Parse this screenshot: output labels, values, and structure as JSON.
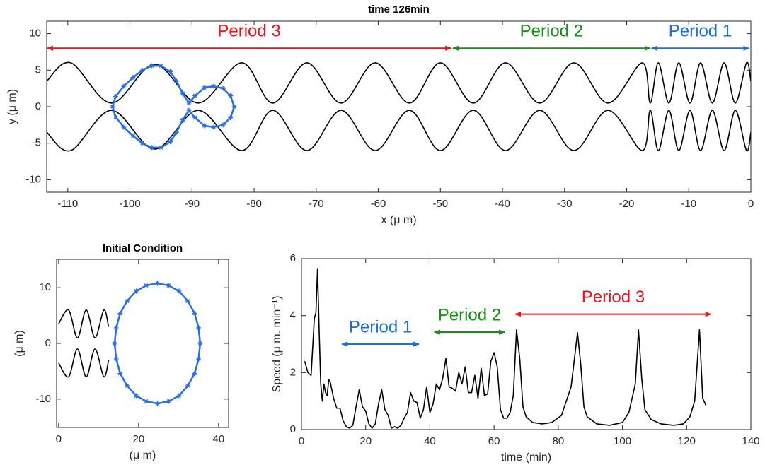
{
  "chart_data": [
    {
      "type": "line",
      "title": "time 126min",
      "xlabel": "x (μ m)",
      "ylabel": "y (μ m)",
      "xlim": [
        -113.4,
        0
      ],
      "ylim": [
        -11.7,
        11.7
      ],
      "xticks": [
        -110,
        -100,
        -90,
        -80,
        -70,
        -60,
        -50,
        -40,
        -30,
        -20,
        -10,
        0
      ],
      "yticks": [
        -10,
        -5,
        0,
        5,
        10
      ],
      "series": [
        {
          "color": "#000000",
          "smooth": true,
          "x": [
            -113.4,
            -109.5,
            -103,
            -96,
            -89,
            -82,
            -77,
            -71.5,
            -66,
            -60.5,
            -55,
            -50,
            -44.7,
            -39.5,
            -34,
            -28.5,
            -23,
            -17.5,
            -16.2,
            -14.9,
            -13.2,
            -11.6,
            -9.8,
            -8.1,
            -6.2,
            -4.3,
            -2.5,
            -0.7,
            0
          ],
          "values": [
            3.5,
            6,
            0.5,
            5.8,
            0.5,
            6,
            0.5,
            6,
            0.5,
            6,
            0.5,
            6,
            0.5,
            6,
            0.5,
            6,
            0.5,
            6,
            0.5,
            6,
            0.5,
            6,
            0.5,
            6,
            0.5,
            6,
            0.5,
            6,
            3.5
          ]
        },
        {
          "color": "#000000",
          "smooth": true,
          "x": [
            -113.4,
            -109.5,
            -103,
            -96,
            -89,
            -82,
            -77,
            -71.5,
            -66,
            -60.5,
            -55,
            -50,
            -44.7,
            -39.5,
            -34,
            -28.5,
            -23,
            -17.5,
            -16.2,
            -14.9,
            -13.2,
            -11.6,
            -9.8,
            -8.1,
            -6.2,
            -4.3,
            -2.5,
            -0.7,
            0
          ],
          "values": [
            -3.5,
            -6,
            -0.5,
            -5.8,
            -0.5,
            -6,
            -0.5,
            -6,
            -0.5,
            -6,
            -0.5,
            -6,
            -0.5,
            -6,
            -0.5,
            -6,
            -0.5,
            -6,
            -0.5,
            -6,
            -0.5,
            -6,
            -0.5,
            -6,
            -0.5,
            -6,
            -0.5,
            -6,
            -3.5
          ]
        },
        {
          "color": "#2a6fdb",
          "marker": "star",
          "closed": true,
          "x": [
            -90.5,
            -91.5,
            -92.5,
            -93.5,
            -95,
            -96.5,
            -98,
            -99.5,
            -101,
            -102.3,
            -102.8,
            -102.3,
            -101,
            -99.5,
            -98,
            -96.5,
            -95,
            -93.5,
            -92.5,
            -91.5,
            -90.5,
            -89.5,
            -88,
            -86.5,
            -85,
            -83.8,
            -83.2,
            -83.8,
            -85,
            -86.5,
            -88,
            -89.5
          ],
          "values": [
            0.5,
            1.8,
            3.5,
            4.8,
            5.6,
            5.6,
            5,
            4,
            2.8,
            1.4,
            0,
            -1.4,
            -2.8,
            -4,
            -5,
            -5.6,
            -5.6,
            -4.8,
            -3.5,
            -1.8,
            -0.5,
            -1.5,
            -2.6,
            -2.8,
            -2.5,
            -1.5,
            0,
            1.5,
            2.5,
            2.8,
            2.6,
            1.5
          ]
        }
      ],
      "annotations": [
        {
          "text": "Period 3",
          "color": "#e8141e",
          "x": [
            -113.3,
            -48.3
          ],
          "y": 8
        },
        {
          "text": "Period 2",
          "color": "#1c8a1c",
          "x": [
            -48,
            -16.2
          ],
          "y": 8
        },
        {
          "text": "Period 1",
          "color": "#1f6fd0",
          "x": [
            -16,
            -0.3
          ],
          "y": 8
        }
      ]
    },
    {
      "type": "line",
      "title": "Initial Condition",
      "xlabel": "(μ m)",
      "ylabel": "(μ m)",
      "xlim": [
        -0.5,
        42.5
      ],
      "ylim": [
        -15.1,
        15.1
      ],
      "xticks": [
        0,
        20,
        40
      ],
      "yticks": [
        -10,
        0,
        10
      ],
      "series": [
        {
          "color": "#000000",
          "smooth": true,
          "x": [
            0,
            2.5,
            4.7,
            6.9,
            9.1,
            11.3,
            12.5
          ],
          "values": [
            3.5,
            6,
            1,
            6,
            1,
            6,
            3
          ]
        },
        {
          "color": "#000000",
          "smooth": true,
          "x": [
            0,
            2.5,
            4.7,
            6.9,
            9.1,
            11.3,
            12.5
          ],
          "values": [
            -3.5,
            -6,
            -1,
            -6,
            -1,
            -6,
            -3
          ]
        },
        {
          "color": "#2a6fdb",
          "marker": "star",
          "closed": true,
          "x": [
            35.4,
            35.0,
            34.0,
            32.3,
            30.1,
            27.5,
            24.7,
            21.9,
            19.4,
            17.1,
            15.4,
            14.4,
            14.0,
            14.4,
            15.4,
            17.1,
            19.4,
            21.9,
            24.7,
            27.5,
            30.1,
            32.3,
            34.0,
            35.0
          ],
          "values": [
            0,
            2.8,
            5.4,
            7.6,
            9.4,
            10.4,
            10.8,
            10.4,
            9.4,
            7.6,
            5.4,
            2.8,
            0,
            -2.8,
            -5.4,
            -7.6,
            -9.4,
            -10.4,
            -10.8,
            -10.4,
            -9.4,
            -7.6,
            -5.4,
            -2.8
          ]
        }
      ]
    },
    {
      "type": "line",
      "xlabel": "time (min)",
      "ylabel": "Speed (μ m. min⁻¹)",
      "xlim": [
        0,
        140
      ],
      "ylim": [
        0,
        6
      ],
      "xticks": [
        0,
        20,
        40,
        60,
        80,
        100,
        120,
        140
      ],
      "yticks": [
        0,
        2,
        4,
        6
      ],
      "series": [
        {
          "color": "#000000",
          "x": [
            1,
            2,
            3,
            4,
            4.5,
            5,
            5.5,
            6,
            6.5,
            7,
            7.5,
            8,
            8.5,
            9,
            10,
            11,
            12,
            13,
            14,
            15,
            16,
            17,
            18,
            19,
            20,
            21,
            22,
            23,
            24,
            25,
            26,
            27,
            28,
            29,
            30,
            31,
            32,
            33,
            34,
            35,
            36,
            37,
            38,
            39,
            40,
            41,
            42,
            43,
            44,
            45,
            46,
            47,
            48,
            49,
            50,
            51,
            52,
            53,
            54,
            55,
            56,
            57,
            58,
            59,
            60,
            61,
            62,
            63,
            64,
            65,
            66,
            67,
            68,
            69,
            70,
            72,
            75,
            78,
            81,
            84,
            86,
            87,
            88,
            89,
            92,
            96,
            100,
            102,
            104,
            105,
            106,
            107,
            109,
            112,
            116,
            119,
            121,
            122.5,
            124,
            125,
            126
          ],
          "values": [
            2.4,
            2.0,
            1.9,
            3.9,
            4.1,
            5.65,
            3.5,
            1.6,
            1.0,
            1.6,
            1.3,
            1.2,
            1.75,
            1.65,
            1.1,
            0.75,
            0.75,
            0.3,
            0.1,
            0.05,
            0.15,
            0.8,
            1.4,
            0.8,
            0.65,
            0.2,
            0.05,
            0.2,
            0.9,
            1.4,
            0.7,
            0.5,
            0.05,
            0.1,
            0.05,
            0.15,
            0.4,
            0.6,
            1.3,
            1.0,
            0.95,
            0.4,
            0.7,
            1.5,
            0.6,
            0.9,
            1.6,
            1.4,
            1.8,
            2.5,
            1.5,
            1.45,
            1.35,
            2.0,
            1.6,
            2.2,
            1.3,
            1.3,
            1.9,
            1.1,
            2.15,
            1.2,
            1.25,
            2.4,
            2.7,
            2.2,
            0.7,
            0.4,
            0.4,
            0.6,
            1.2,
            3.5,
            2.5,
            0.8,
            0.45,
            0.25,
            0.2,
            0.25,
            0.5,
            1.5,
            3.4,
            2.3,
            0.8,
            0.45,
            0.2,
            0.15,
            0.25,
            0.6,
            1.6,
            3.5,
            1.8,
            0.7,
            0.35,
            0.2,
            0.15,
            0.2,
            0.45,
            1.0,
            3.5,
            1.1,
            0.85
          ]
        }
      ],
      "annotations": [
        {
          "text": "Period 1",
          "color": "#1f6fd0",
          "x": [
            12.6,
            36.6
          ],
          "y": 3.0
        },
        {
          "text": "Period 2",
          "color": "#1c8a1c",
          "x": [
            41.4,
            63.3
          ],
          "y": 3.42
        },
        {
          "text": "Period 3",
          "color": "#e8141e",
          "x": [
            66.6,
            127.6
          ],
          "y": 4.05
        }
      ]
    }
  ]
}
